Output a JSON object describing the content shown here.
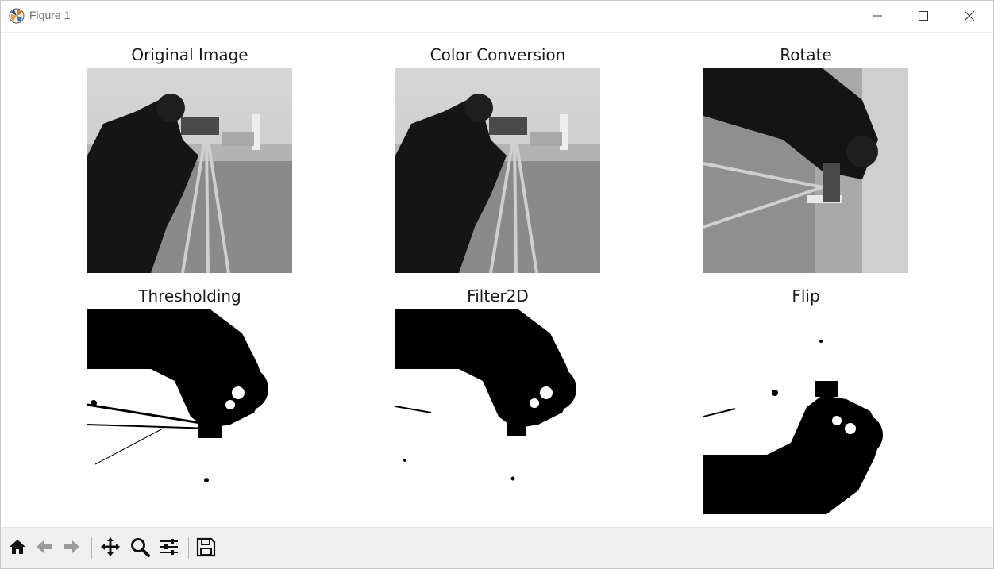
{
  "window": {
    "title": "Figure 1",
    "icon": "matplotlib-logo-icon",
    "controls": [
      "minimize-icon",
      "maximize-icon",
      "close-icon"
    ]
  },
  "figure": {
    "subplots": [
      {
        "title": "Original Image",
        "image": "cameraman grayscale photo"
      },
      {
        "title": "Color Conversion",
        "image": "cameraman grayscale photo"
      },
      {
        "title": "Rotate",
        "image": "cameraman rotated 90 degrees"
      },
      {
        "title": "Thresholding",
        "image": "binary thresholded rotated cameraman"
      },
      {
        "title": "Filter2D",
        "image": "binary filtered rotated cameraman"
      },
      {
        "title": "Flip",
        "image": "binary flipped cameraman"
      }
    ]
  },
  "toolbar": {
    "buttons": [
      {
        "name": "home-icon"
      },
      {
        "name": "back-icon"
      },
      {
        "name": "forward-icon"
      },
      {
        "name": "pan-icon"
      },
      {
        "name": "zoom-icon"
      },
      {
        "name": "configure-subplots-icon"
      },
      {
        "name": "save-icon"
      }
    ]
  },
  "colors": {
    "titlebar_bg": "#ffffff",
    "toolbar_bg": "#f0f0f0",
    "title_text": "#6e6e6e"
  }
}
